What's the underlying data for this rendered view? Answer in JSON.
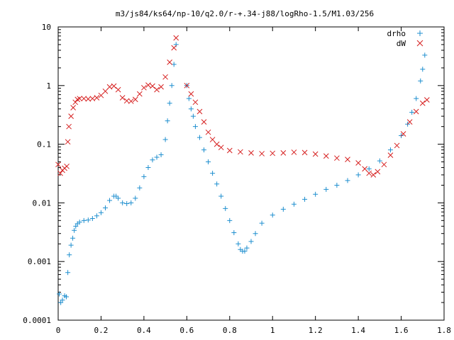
{
  "chart_data": {
    "type": "scatter",
    "title": "m3/js84/ks64/np-10/q2.0/r-+.34-j88/logRho-1.5/M1.03/256",
    "xlabel": "",
    "ylabel": "",
    "xlim": [
      0,
      1.8
    ],
    "ylim": [
      0.0001,
      10
    ],
    "yscale": "log",
    "grid": false,
    "legend_position": "top-right",
    "x_ticks": [
      "0",
      "0.2",
      "0.4",
      "0.6",
      "0.8",
      "1",
      "1.2",
      "1.4",
      "1.6",
      "1.8"
    ],
    "y_ticks": [
      "0.0001",
      "0.001",
      "0.01",
      "0.1",
      "1",
      "10"
    ],
    "series": [
      {
        "name": "drho",
        "marker": "plus",
        "color": "#1f8fcf",
        "points": [
          [
            0.005,
            0.00028
          ],
          [
            0.012,
            0.0002
          ],
          [
            0.02,
            0.00022
          ],
          [
            0.03,
            0.00026
          ],
          [
            0.038,
            0.00025
          ],
          [
            0.045,
            0.00065
          ],
          [
            0.052,
            0.0013
          ],
          [
            0.06,
            0.0019
          ],
          [
            0.068,
            0.0025
          ],
          [
            0.075,
            0.0034
          ],
          [
            0.082,
            0.004
          ],
          [
            0.09,
            0.0044
          ],
          [
            0.1,
            0.0047
          ],
          [
            0.12,
            0.005
          ],
          [
            0.14,
            0.0051
          ],
          [
            0.16,
            0.0054
          ],
          [
            0.18,
            0.006
          ],
          [
            0.2,
            0.0068
          ],
          [
            0.22,
            0.0082
          ],
          [
            0.24,
            0.011
          ],
          [
            0.26,
            0.013
          ],
          [
            0.27,
            0.013
          ],
          [
            0.28,
            0.012
          ],
          [
            0.3,
            0.01
          ],
          [
            0.32,
            0.0097
          ],
          [
            0.34,
            0.01
          ],
          [
            0.36,
            0.012
          ],
          [
            0.38,
            0.018
          ],
          [
            0.4,
            0.028
          ],
          [
            0.42,
            0.04
          ],
          [
            0.44,
            0.054
          ],
          [
            0.46,
            0.06
          ],
          [
            0.48,
            0.066
          ],
          [
            0.5,
            0.12
          ],
          [
            0.51,
            0.25
          ],
          [
            0.52,
            0.5
          ],
          [
            0.53,
            1.0
          ],
          [
            0.54,
            2.3
          ],
          [
            0.55,
            5.0
          ],
          [
            0.6,
            1.0
          ],
          [
            0.61,
            0.6
          ],
          [
            0.62,
            0.4
          ],
          [
            0.63,
            0.3
          ],
          [
            0.64,
            0.2
          ],
          [
            0.66,
            0.13
          ],
          [
            0.68,
            0.08
          ],
          [
            0.7,
            0.05
          ],
          [
            0.72,
            0.032
          ],
          [
            0.74,
            0.021
          ],
          [
            0.76,
            0.013
          ],
          [
            0.78,
            0.008
          ],
          [
            0.8,
            0.005
          ],
          [
            0.82,
            0.0031
          ],
          [
            0.84,
            0.002
          ],
          [
            0.85,
            0.0016
          ],
          [
            0.86,
            0.0015
          ],
          [
            0.87,
            0.0015
          ],
          [
            0.88,
            0.0017
          ],
          [
            0.9,
            0.0022
          ],
          [
            0.92,
            0.003
          ],
          [
            0.95,
            0.0045
          ],
          [
            1.0,
            0.0062
          ],
          [
            1.05,
            0.0078
          ],
          [
            1.1,
            0.0095
          ],
          [
            1.15,
            0.0115
          ],
          [
            1.2,
            0.014
          ],
          [
            1.25,
            0.017
          ],
          [
            1.3,
            0.02
          ],
          [
            1.35,
            0.024
          ],
          [
            1.4,
            0.03
          ],
          [
            1.45,
            0.038
          ],
          [
            1.5,
            0.052
          ],
          [
            1.55,
            0.08
          ],
          [
            1.6,
            0.14
          ],
          [
            1.63,
            0.22
          ],
          [
            1.65,
            0.35
          ],
          [
            1.67,
            0.6
          ],
          [
            1.69,
            1.2
          ],
          [
            1.7,
            1.9
          ],
          [
            1.71,
            3.3
          ]
        ]
      },
      {
        "name": "dW",
        "marker": "cross",
        "color": "#d62020",
        "points": [
          [
            0.0,
            0.045
          ],
          [
            0.01,
            0.032
          ],
          [
            0.02,
            0.036
          ],
          [
            0.03,
            0.039
          ],
          [
            0.04,
            0.042
          ],
          [
            0.045,
            0.11
          ],
          [
            0.05,
            0.2
          ],
          [
            0.06,
            0.3
          ],
          [
            0.07,
            0.42
          ],
          [
            0.08,
            0.52
          ],
          [
            0.09,
            0.58
          ],
          [
            0.1,
            0.6
          ],
          [
            0.12,
            0.6
          ],
          [
            0.14,
            0.59
          ],
          [
            0.16,
            0.6
          ],
          [
            0.18,
            0.62
          ],
          [
            0.2,
            0.68
          ],
          [
            0.22,
            0.8
          ],
          [
            0.24,
            0.95
          ],
          [
            0.26,
            0.98
          ],
          [
            0.28,
            0.85
          ],
          [
            0.3,
            0.62
          ],
          [
            0.32,
            0.55
          ],
          [
            0.34,
            0.54
          ],
          [
            0.36,
            0.58
          ],
          [
            0.38,
            0.72
          ],
          [
            0.4,
            0.92
          ],
          [
            0.42,
            1.02
          ],
          [
            0.44,
            0.98
          ],
          [
            0.46,
            0.85
          ],
          [
            0.48,
            0.95
          ],
          [
            0.5,
            1.4
          ],
          [
            0.52,
            2.5
          ],
          [
            0.54,
            4.4
          ],
          [
            0.55,
            6.5
          ],
          [
            0.6,
            1.0
          ],
          [
            0.62,
            0.72
          ],
          [
            0.64,
            0.52
          ],
          [
            0.66,
            0.36
          ],
          [
            0.68,
            0.24
          ],
          [
            0.7,
            0.16
          ],
          [
            0.72,
            0.12
          ],
          [
            0.74,
            0.1
          ],
          [
            0.76,
            0.088
          ],
          [
            0.8,
            0.078
          ],
          [
            0.85,
            0.074
          ],
          [
            0.9,
            0.071
          ],
          [
            0.95,
            0.069
          ],
          [
            1.0,
            0.07
          ],
          [
            1.05,
            0.071
          ],
          [
            1.1,
            0.073
          ],
          [
            1.15,
            0.072
          ],
          [
            1.2,
            0.068
          ],
          [
            1.25,
            0.063
          ],
          [
            1.3,
            0.058
          ],
          [
            1.35,
            0.055
          ],
          [
            1.4,
            0.048
          ],
          [
            1.43,
            0.038
          ],
          [
            1.45,
            0.032
          ],
          [
            1.47,
            0.03
          ],
          [
            1.49,
            0.034
          ],
          [
            1.52,
            0.045
          ],
          [
            1.55,
            0.065
          ],
          [
            1.58,
            0.095
          ],
          [
            1.61,
            0.15
          ],
          [
            1.64,
            0.24
          ],
          [
            1.67,
            0.36
          ],
          [
            1.7,
            0.5
          ],
          [
            1.72,
            0.57
          ]
        ]
      }
    ]
  }
}
